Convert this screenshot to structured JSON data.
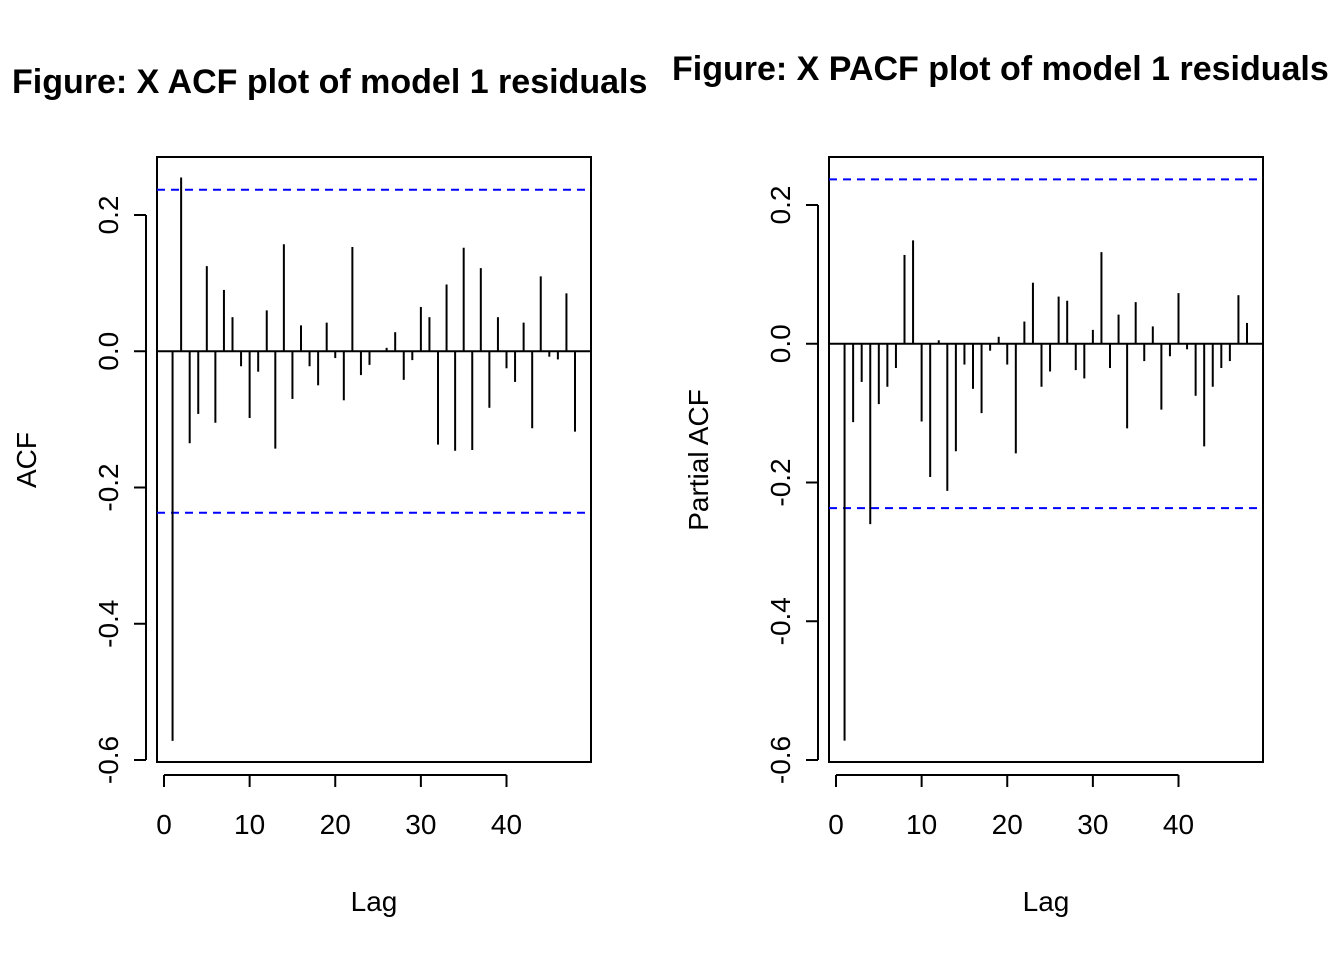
{
  "chart_data": [
    {
      "type": "bar",
      "title": "Figure:  X ACF plot of model 1 residuals",
      "xlabel": "Lag",
      "ylabel": "ACF",
      "x_ticks": [
        "0",
        "10",
        "20",
        "30",
        "40"
      ],
      "y_ticks": [
        "-0.6",
        "-0.4",
        "-0.2",
        "0.0",
        "0.2"
      ],
      "xlim": [
        0,
        49
      ],
      "ylim": [
        -0.6,
        0.25
      ],
      "confidence_bound": 0.237,
      "colors": {
        "bars": "#000000",
        "bounds": "#0000ff",
        "zero_line": "#000000"
      },
      "series": [
        {
          "lags": [
            1,
            2,
            3,
            4,
            5,
            6,
            7,
            8,
            9,
            10,
            11,
            12,
            13,
            14,
            15,
            16,
            17,
            18,
            19,
            20,
            21,
            22,
            23,
            24,
            25,
            26,
            27,
            28,
            29,
            30,
            31,
            32,
            33,
            34,
            35,
            36,
            37,
            38,
            39,
            40,
            41,
            42,
            43,
            44,
            45,
            46,
            47,
            48
          ],
          "values": [
            -0.572,
            0.255,
            -0.135,
            -0.092,
            0.125,
            -0.105,
            0.09,
            0.05,
            -0.022,
            -0.098,
            -0.03,
            0.06,
            -0.143,
            0.157,
            -0.07,
            0.038,
            -0.022,
            -0.05,
            0.042,
            -0.01,
            -0.072,
            0.153,
            -0.035,
            -0.02,
            0.0,
            0.005,
            0.028,
            -0.042,
            -0.013,
            0.065,
            0.05,
            -0.137,
            0.098,
            -0.146,
            0.152,
            -0.145,
            0.122,
            -0.083,
            0.05,
            -0.025,
            -0.045,
            0.042,
            -0.113,
            0.11,
            -0.008,
            -0.012,
            0.085,
            -0.118
          ]
        }
      ]
    },
    {
      "type": "bar",
      "title": "Figure:  X PACF plot of model 1 residuals",
      "xlabel": "Lag",
      "ylabel": "Partial ACF",
      "x_ticks": [
        "0",
        "10",
        "20",
        "30",
        "40"
      ],
      "y_ticks": [
        "-0.6",
        "-0.4",
        "-0.2",
        "0.0",
        "0.2"
      ],
      "xlim": [
        0,
        49
      ],
      "ylim": [
        -0.6,
        0.25
      ],
      "confidence_bound": 0.237,
      "colors": {
        "bars": "#000000",
        "bounds": "#0000ff",
        "zero_line": "#000000"
      },
      "series": [
        {
          "lags": [
            1,
            2,
            3,
            4,
            5,
            6,
            7,
            8,
            9,
            10,
            11,
            12,
            13,
            14,
            15,
            16,
            17,
            18,
            19,
            20,
            21,
            22,
            23,
            24,
            25,
            26,
            27,
            28,
            29,
            30,
            31,
            32,
            33,
            34,
            35,
            36,
            37,
            38,
            39,
            40,
            41,
            42,
            43,
            44,
            45,
            46,
            47,
            48
          ],
          "values": [
            -0.572,
            -0.113,
            -0.055,
            -0.26,
            -0.087,
            -0.062,
            -0.035,
            0.128,
            0.149,
            -0.112,
            -0.192,
            0.005,
            -0.212,
            -0.155,
            -0.03,
            -0.065,
            -0.1,
            -0.01,
            0.01,
            -0.03,
            -0.158,
            0.032,
            0.088,
            -0.062,
            -0.04,
            0.068,
            0.062,
            -0.038,
            -0.05,
            0.02,
            0.132,
            -0.035,
            0.042,
            -0.122,
            0.06,
            -0.025,
            0.025,
            -0.095,
            -0.018,
            0.073,
            -0.008,
            -0.075,
            -0.148,
            -0.062,
            -0.035,
            -0.025,
            0.07,
            0.03
          ]
        }
      ]
    }
  ]
}
